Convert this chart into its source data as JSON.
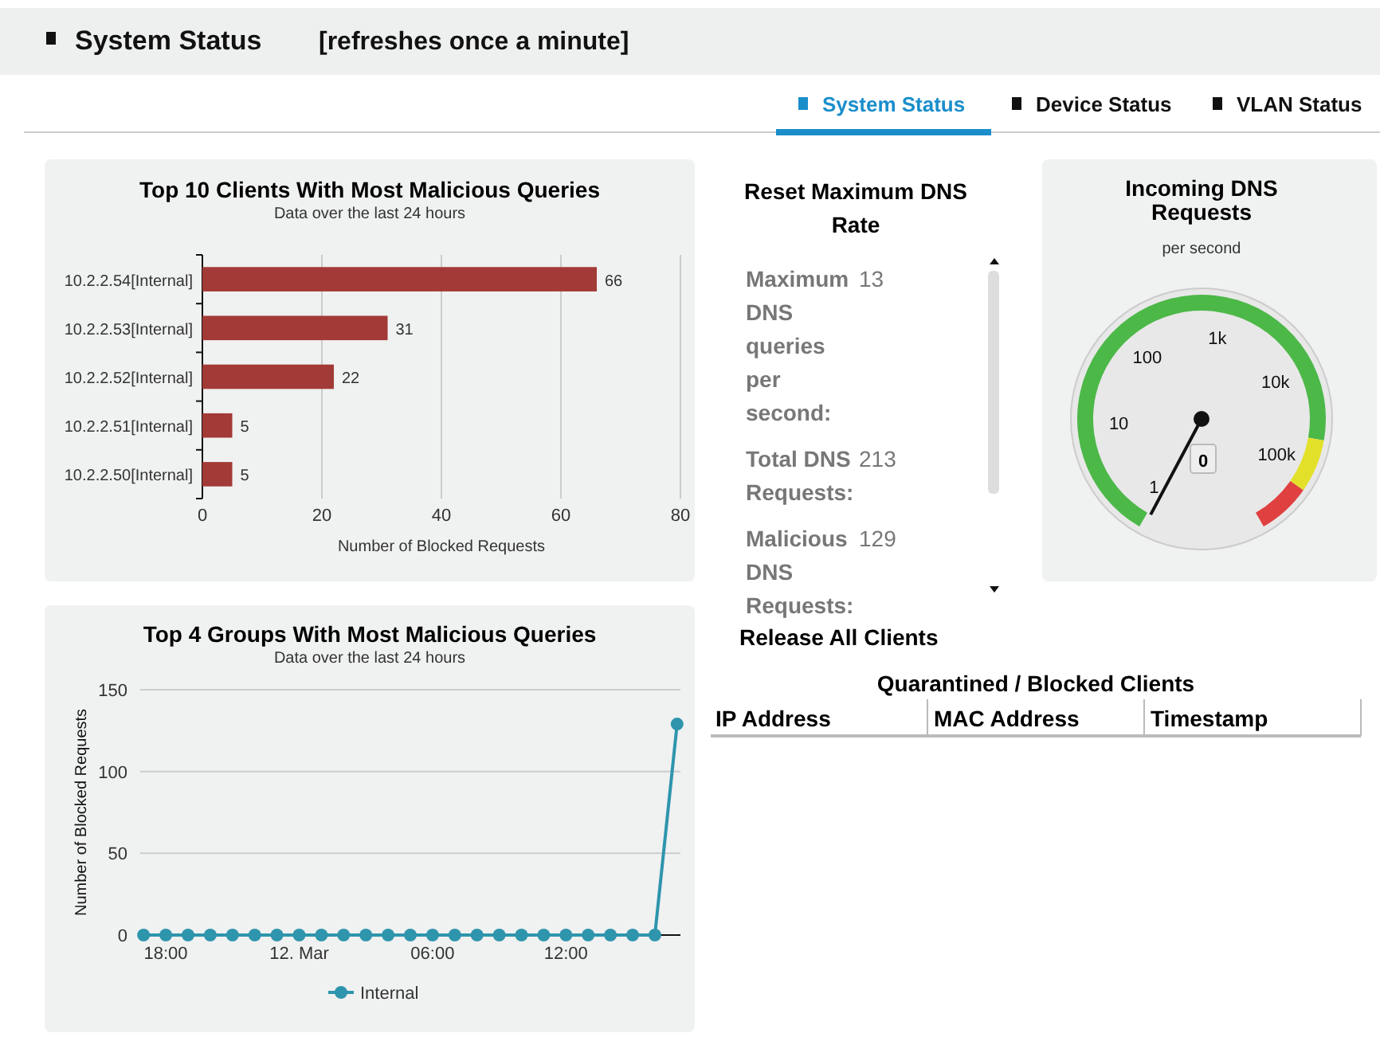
{
  "chart_data": [
    {
      "type": "other",
      "title": "System Status",
      "subtitle": "[refreshes once a minute]",
      "annotations": [
        "System Status",
        "Device Status",
        "VLAN Status"
      ]
    },
    {
      "type": "bar",
      "orientation": "horizontal",
      "title": "Top 10 Clients With Most Malicious Queries",
      "subtitle": "Data over the last 24 hours",
      "xlabel": "Number of Blocked Requests",
      "categories": [
        "10.2.2.54[Internal]",
        "10.2.2.53[Internal]",
        "10.2.2.52[Internal]",
        "10.2.2.51[Internal]",
        "10.2.2.50[Internal]"
      ],
      "values": [
        66,
        31,
        22,
        5,
        5
      ],
      "color": "#a23a37",
      "xlim": [
        0,
        80
      ],
      "xticks": [
        0,
        20,
        40,
        60,
        80
      ],
      "grid": "x",
      "data_labels": true,
      "legend": false
    },
    {
      "type": "other",
      "title": "Reset Maximum DNS Rate",
      "annotations": [
        "Maximum DNS queries per second:",
        "13",
        "Total DNS Requests:",
        "213",
        "Malicious DNS Requests:",
        "129"
      ]
    },
    {
      "type": "other",
      "title": "Incoming DNS Requests",
      "subtitle": "per second",
      "annotations": [
        "1",
        "10",
        "100",
        "1k",
        "10k",
        "100k",
        "0"
      ]
    },
    {
      "type": "line",
      "title": "Top 4 Groups With Most Malicious Queries",
      "subtitle": "Data over the last 24 hours",
      "ylabel": "Number of Blocked Requests",
      "categories": [
        null,
        "18:00",
        null,
        null,
        null,
        null,
        null,
        "12. Mar",
        null,
        null,
        null,
        null,
        null,
        "06:00",
        null,
        null,
        null,
        null,
        null,
        "12:00",
        null,
        null,
        null,
        null,
        null
      ],
      "ylim": [
        0,
        150
      ],
      "yticks": [
        0,
        50,
        100,
        150
      ],
      "grid": "y",
      "marker": "circle",
      "line_style": "solid",
      "legend": "bottom",
      "series": [
        {
          "name": "Internal",
          "color": "#2e95ad",
          "values": [
            0,
            0,
            0,
            0,
            0,
            0,
            0,
            0,
            0,
            0,
            0,
            0,
            0,
            0,
            0,
            0,
            0,
            0,
            0,
            0,
            0,
            0,
            0,
            0,
            129
          ]
        }
      ]
    },
    {
      "type": "other",
      "title": "Quarantined / Blocked Clients",
      "annotations": [
        "Release All Clients",
        "IP Address",
        "MAC Address",
        "Timestamp"
      ]
    }
  ]
}
